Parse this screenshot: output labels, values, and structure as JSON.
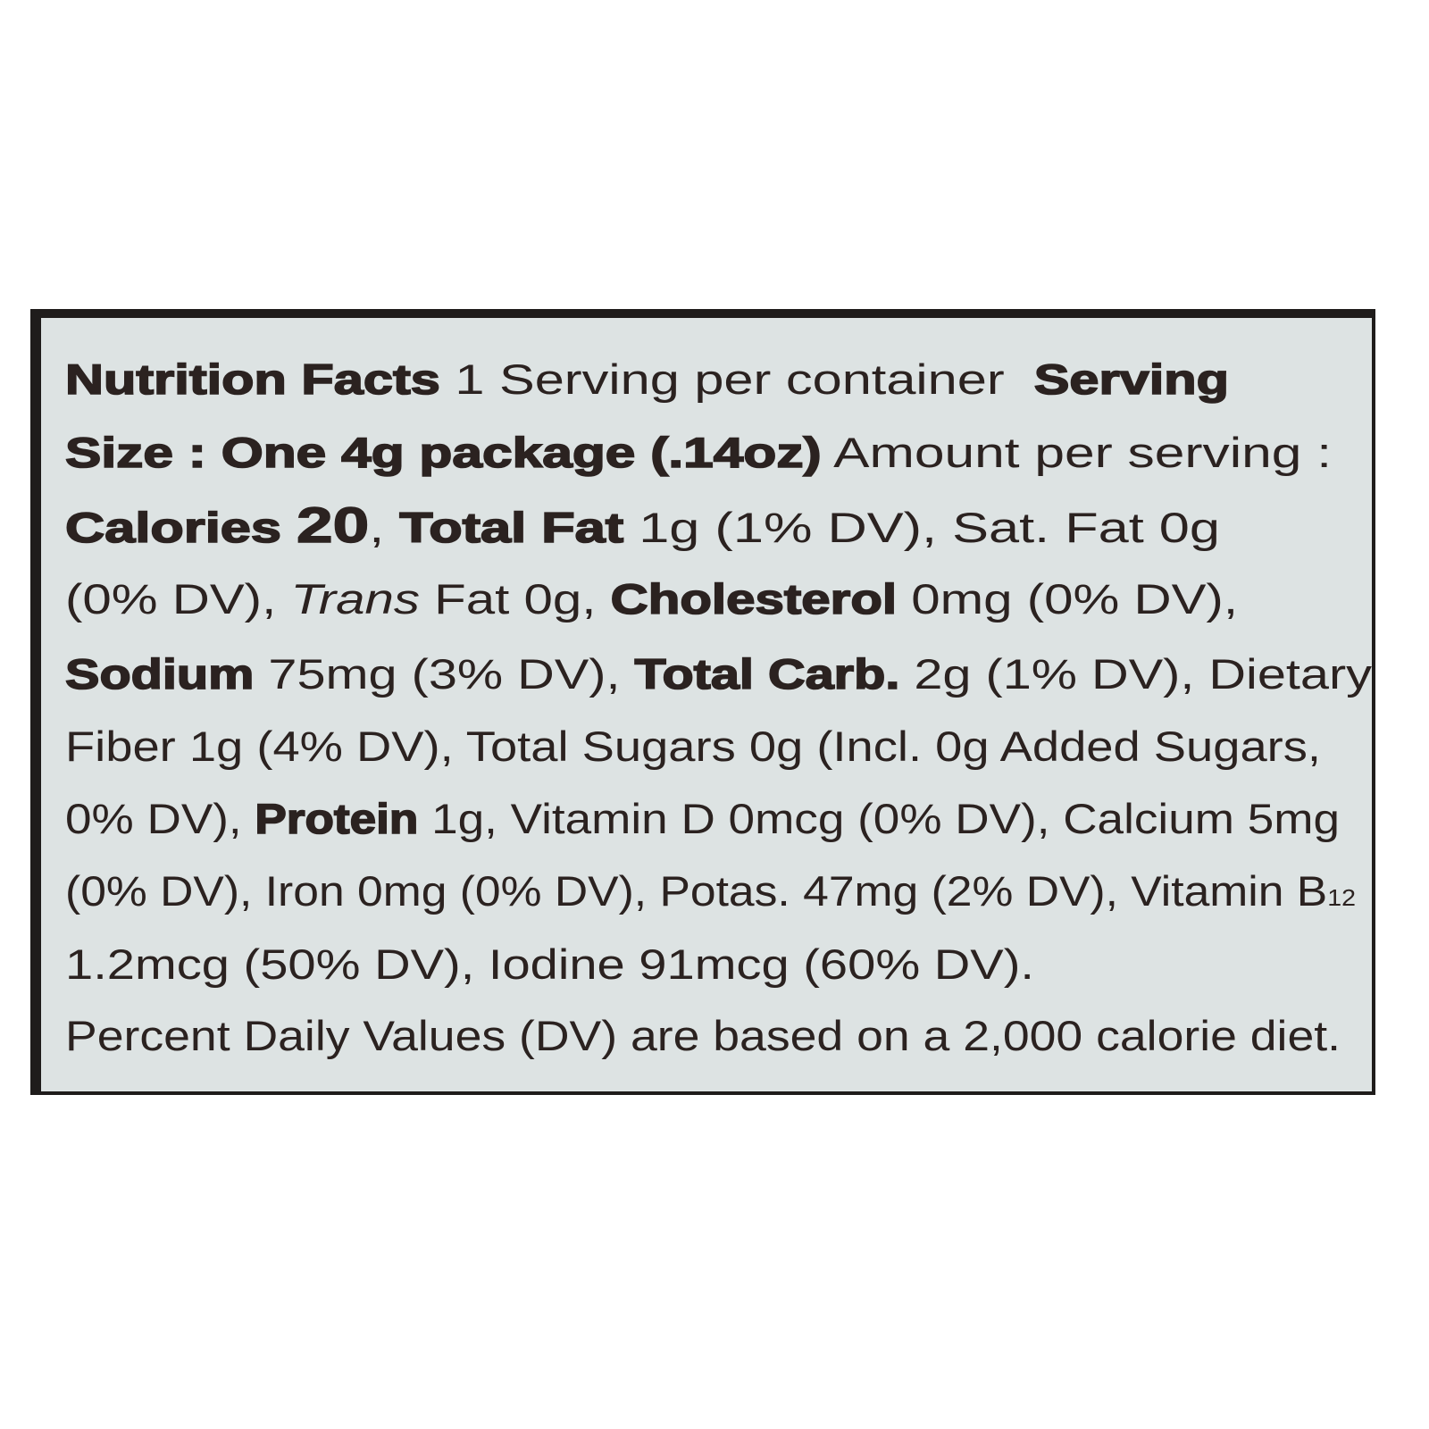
{
  "label": {
    "colors": {
      "background": "#dde3e3",
      "text": "#2b2220",
      "border": "#1f1c1b"
    },
    "lines": [
      [
        {
          "text": "Nutrition Facts",
          "style": "bold"
        },
        {
          "text": " 1 Serving per container  ",
          "style": "regular"
        },
        {
          "text": "Serving",
          "style": "bold"
        }
      ],
      [
        {
          "text": "Size : One 4g package (.14oz)",
          "style": "bold"
        },
        {
          "text": " Amount per serving :",
          "style": "regular"
        }
      ],
      [
        {
          "text": "Calories ",
          "style": "bold"
        },
        {
          "text": "20",
          "style": "big"
        },
        {
          "text": ", ",
          "style": "regular"
        },
        {
          "text": "Total Fat",
          "style": "bold"
        },
        {
          "text": " 1g (1% DV), Sat. Fat 0g",
          "style": "regular"
        }
      ],
      [
        {
          "text": "(0% DV), ",
          "style": "regular"
        },
        {
          "text": "Trans",
          "style": "italic"
        },
        {
          "text": " Fat 0g, ",
          "style": "regular"
        },
        {
          "text": "Cholesterol",
          "style": "bold"
        },
        {
          "text": " 0mg (0% DV),",
          "style": "regular"
        }
      ],
      [
        {
          "text": "Sodium",
          "style": "bold"
        },
        {
          "text": " 75mg (3% DV), ",
          "style": "regular"
        },
        {
          "text": "Total Carb.",
          "style": "bold"
        },
        {
          "text": " 2g (1% DV), Dietary",
          "style": "regular"
        }
      ],
      [
        {
          "text": "Fiber 1g (4% DV), Total Sugars 0g (Incl. 0g Added Sugars,",
          "style": "regular"
        }
      ],
      [
        {
          "text": "0% DV), ",
          "style": "regular"
        },
        {
          "text": "Protein",
          "style": "bold"
        },
        {
          "text": " 1g, Vitamin D 0mcg (0% DV), Calcium 5mg",
          "style": "regular"
        }
      ],
      [
        {
          "text": "(0% DV), Iron 0mg (0% DV), Potas. 47mg (2% DV), Vitamin B",
          "style": "regular"
        },
        {
          "text": "12",
          "style": "sub"
        }
      ],
      [
        {
          "text": "1.2mcg (50% DV), Iodine 91mcg (60% DV).",
          "style": "regular"
        }
      ],
      [
        {
          "text": "Percent Daily Values (DV) are based on a 2,000 calorie diet.",
          "style": "regular"
        }
      ]
    ]
  }
}
